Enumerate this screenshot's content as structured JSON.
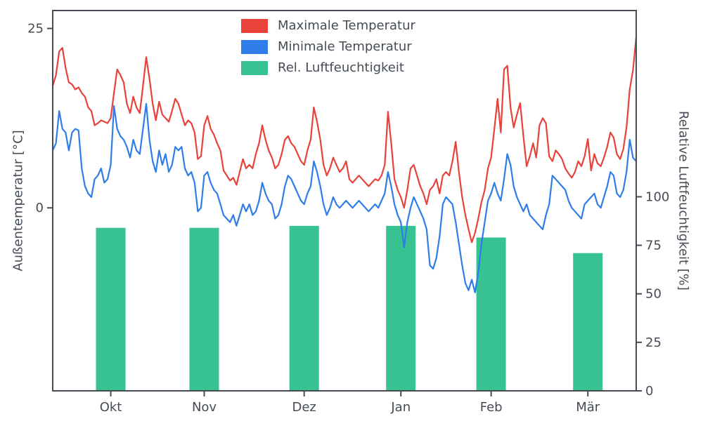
{
  "colors": {
    "axis": "#454c55",
    "background": "#ffffff",
    "max_temp": "#e8423a",
    "min_temp": "#2e7de9",
    "humidity": "#38c191"
  },
  "chart_data": {
    "type": "line+bar",
    "title": "",
    "grid": false,
    "legend": {
      "position": "upper center",
      "frame": false,
      "entries": [
        "Maximale Temperatur",
        "Minimale Temperatur",
        "Rel. Luftfeuchtigkeit"
      ]
    },
    "x": {
      "unit": "day-index (Okt-Mär, daily values)",
      "months": [
        "Okt",
        "Nov",
        "Dez",
        "Jan",
        "Feb",
        "Mär"
      ],
      "month_center_day": [
        18,
        47,
        78,
        108,
        136,
        166
      ],
      "total_days": 182
    },
    "left_axis": {
      "label": "Außentemperatur [°C]",
      "ticks": [
        0,
        25
      ],
      "range": [
        -25.5,
        27.5
      ]
    },
    "right_axis": {
      "label": "Relative Luftfeuchtigkeit [%]",
      "ticks": [
        0,
        25,
        50,
        75,
        100
      ],
      "range": [
        0,
        196
      ]
    },
    "series": [
      {
        "name": "Maximale Temperatur",
        "type": "line",
        "axis": "left",
        "color": "#e8423a",
        "values": [
          17,
          18.5,
          21.8,
          22.3,
          19.5,
          17.5,
          17.2,
          16.5,
          16.8,
          16,
          15.5,
          14,
          13.5,
          11.5,
          11.8,
          12.2,
          12,
          11.8,
          12.5,
          16,
          19.3,
          18.5,
          17.5,
          14.5,
          13.2,
          15.5,
          14,
          13.2,
          17,
          21,
          18,
          14.5,
          12.2,
          14.8,
          13,
          12.5,
          12,
          13.5,
          15.2,
          14.5,
          13,
          11.5,
          12.2,
          11.8,
          10.5,
          6.8,
          7.2,
          11.5,
          12.8,
          11,
          10.2,
          9,
          8,
          5.2,
          4.5,
          3.8,
          4.2,
          3.2,
          5,
          6.8,
          5.5,
          6,
          5.5,
          7.5,
          9,
          11.5,
          9.5,
          8,
          7,
          5.5,
          6,
          7.5,
          9.5,
          10,
          9,
          8.5,
          7.5,
          6.5,
          6,
          8,
          9.5,
          14,
          12,
          9.5,
          6,
          4.5,
          5.5,
          7,
          6,
          5,
          5.5,
          6.5,
          4,
          3.5,
          4,
          4.5,
          4,
          3.5,
          3,
          3.5,
          4,
          3.8,
          4.5,
          6,
          13.4,
          9,
          4,
          2.5,
          1.5,
          0,
          2.5,
          5.5,
          6,
          4.5,
          3,
          2,
          0.5,
          2.5,
          3,
          4,
          2,
          4.5,
          5,
          4.5,
          6.5,
          9.2,
          5,
          1.5,
          -1,
          -3,
          -4.8,
          -3.5,
          -1.5,
          0.8,
          2.5,
          5.5,
          7,
          11,
          15.2,
          10.5,
          19.3,
          19.8,
          14,
          11.2,
          13,
          14.6,
          10,
          5.8,
          7.2,
          9,
          7,
          11.5,
          12.5,
          11.8,
          7.2,
          6.5,
          8,
          7.5,
          6.8,
          5.5,
          4.8,
          4.2,
          5,
          6.5,
          5.8,
          7.2,
          9.6,
          5.2,
          7.5,
          6.2,
          5.8,
          7,
          8.5,
          10.5,
          9.8,
          7.5,
          6.8,
          8.2,
          11.2,
          16.5,
          19.2,
          23.8
        ]
      },
      {
        "name": "Minimale Temperatur",
        "type": "line",
        "axis": "left",
        "color": "#2e7de9",
        "values": [
          8,
          9,
          13.5,
          11,
          10.5,
          8,
          10.5,
          11,
          10.8,
          5.5,
          3,
          2,
          1.5,
          4,
          4.5,
          5.5,
          3.5,
          4,
          6,
          14.2,
          11,
          10,
          9.5,
          8.5,
          7,
          9.5,
          8,
          7.5,
          11,
          14.5,
          9.5,
          6.5,
          5,
          8,
          6,
          7.5,
          5,
          6,
          8.5,
          8,
          8.5,
          5.5,
          4.5,
          5,
          3.5,
          -0.5,
          0,
          4.5,
          5,
          3.5,
          2.5,
          2,
          0.5,
          -1,
          -1.5,
          -2,
          -1,
          -2.5,
          -1,
          0.5,
          -0.5,
          0.5,
          -1,
          -0.5,
          1,
          3.5,
          2,
          1,
          0.5,
          -1.5,
          -1,
          0.5,
          3,
          4.5,
          4,
          3,
          2,
          1,
          0.5,
          2,
          3,
          6.5,
          5,
          3,
          0.5,
          -1,
          0,
          1.5,
          0.5,
          0,
          0.5,
          1,
          0.5,
          0,
          0.5,
          1,
          0.5,
          0,
          -0.5,
          0,
          0.5,
          0,
          1,
          2,
          5,
          3,
          0.5,
          -1,
          -2,
          -5.5,
          -2,
          0,
          1.5,
          0.5,
          -0.5,
          -1.5,
          -3,
          -8,
          -8.5,
          -7,
          -4,
          0.5,
          1.5,
          1,
          0.5,
          -2,
          -5,
          -8,
          -10.5,
          -11.5,
          -10,
          -11.8,
          -9,
          -5,
          -2,
          1,
          2,
          3.5,
          2,
          1,
          4,
          7.5,
          6,
          3,
          1.5,
          0.5,
          -0.5,
          0.5,
          -1,
          -1.5,
          -2,
          -2.5,
          -3,
          -1,
          0.5,
          4.5,
          4,
          3.5,
          3,
          2.5,
          1,
          0,
          -0.5,
          -1,
          -1.5,
          0.5,
          1,
          1.5,
          2,
          0.5,
          0,
          1.5,
          3,
          5,
          4.5,
          2,
          1.5,
          2.5,
          5,
          9.5,
          7,
          6.5
        ]
      },
      {
        "name": "Rel. Luftfeuchtigkeit",
        "type": "bar",
        "axis": "right",
        "color": "#38c191",
        "categories": [
          "Okt",
          "Nov",
          "Dez",
          "Jan",
          "Feb",
          "Mär"
        ],
        "values": [
          84,
          84,
          85,
          85,
          79,
          71
        ]
      }
    ]
  }
}
